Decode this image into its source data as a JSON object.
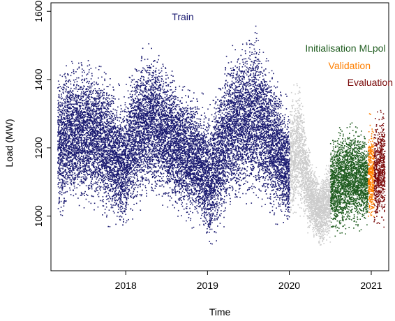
{
  "chart_data": {
    "type": "scatter",
    "title": "",
    "xlabel": "Time",
    "ylabel": "Load (MW)",
    "xlim": [
      "2017-02-01",
      "2021-03-20"
    ],
    "ylim": [
      840,
      1625
    ],
    "xticks": [
      "2018",
      "2019",
      "2020",
      "2021"
    ],
    "yticks": [
      1000,
      1200,
      1400,
      1600
    ],
    "grid": false,
    "legend": "inline text labels, top-right",
    "series": [
      {
        "name": "Train",
        "color": "#191970",
        "x_range": [
          "2017-03-01",
          "2019-12-31"
        ],
        "envelope_x": [
          "2017-03-01",
          "2017-06-01",
          "2017-09-01",
          "2017-12-15",
          "2018-03-01",
          "2018-05-01",
          "2018-07-01",
          "2018-09-01",
          "2018-11-15",
          "2019-01-15",
          "2019-04-01",
          "2019-06-01",
          "2019-08-01",
          "2019-10-01",
          "2019-12-31"
        ],
        "envelope_low": [
          960,
          1000,
          980,
          920,
          1000,
          1020,
          1000,
          960,
          950,
          870,
          980,
          1010,
          1000,
          980,
          930
        ],
        "envelope_high": [
          1460,
          1500,
          1480,
          1380,
          1520,
          1540,
          1480,
          1420,
          1380,
          1350,
          1520,
          1550,
          1600,
          1480,
          1340
        ]
      },
      {
        "name": "Initialisation MLpol",
        "color": "#cccccc",
        "x_range": [
          "2020-01-01",
          "2020-06-30"
        ],
        "envelope_x": [
          "2020-01-01",
          "2020-02-15",
          "2020-04-01",
          "2020-05-15",
          "2020-06-30"
        ],
        "envelope_low": [
          960,
          980,
          930,
          890,
          910
        ],
        "envelope_high": [
          1400,
          1420,
          1200,
          1130,
          1200
        ]
      },
      {
        "name": "",
        "color": "#1f5c1f",
        "x_range": [
          "2020-07-01",
          "2020-12-15"
        ],
        "envelope_x": [
          "2020-07-01",
          "2020-08-15",
          "2020-10-01",
          "2020-11-15",
          "2020-12-15"
        ],
        "envelope_low": [
          930,
          910,
          940,
          950,
          950
        ],
        "envelope_high": [
          1250,
          1290,
          1300,
          1270,
          1250
        ]
      },
      {
        "name": "Validation",
        "color": "#ff7f00",
        "x_range": [
          "2020-12-16",
          "2021-01-10"
        ],
        "envelope_x": [
          "2020-12-16",
          "2021-01-10"
        ],
        "envelope_low": [
          950,
          960
        ],
        "envelope_high": [
          1310,
          1300
        ]
      },
      {
        "name": "Evaluation",
        "color": "#7a0a0a",
        "x_range": [
          "2021-01-11",
          "2021-02-28"
        ],
        "envelope_x": [
          "2021-01-11",
          "2021-02-28"
        ],
        "envelope_low": [
          940,
          950
        ],
        "envelope_high": [
          1320,
          1340
        ]
      }
    ],
    "annotations": [
      {
        "text": "Train",
        "color": "#191970"
      },
      {
        "text": "Initialisation MLpol",
        "color": "#1f5c1f"
      },
      {
        "text": "Validation",
        "color": "#ff7f00"
      },
      {
        "text": "Evaluation",
        "color": "#7a0a0a"
      }
    ]
  }
}
